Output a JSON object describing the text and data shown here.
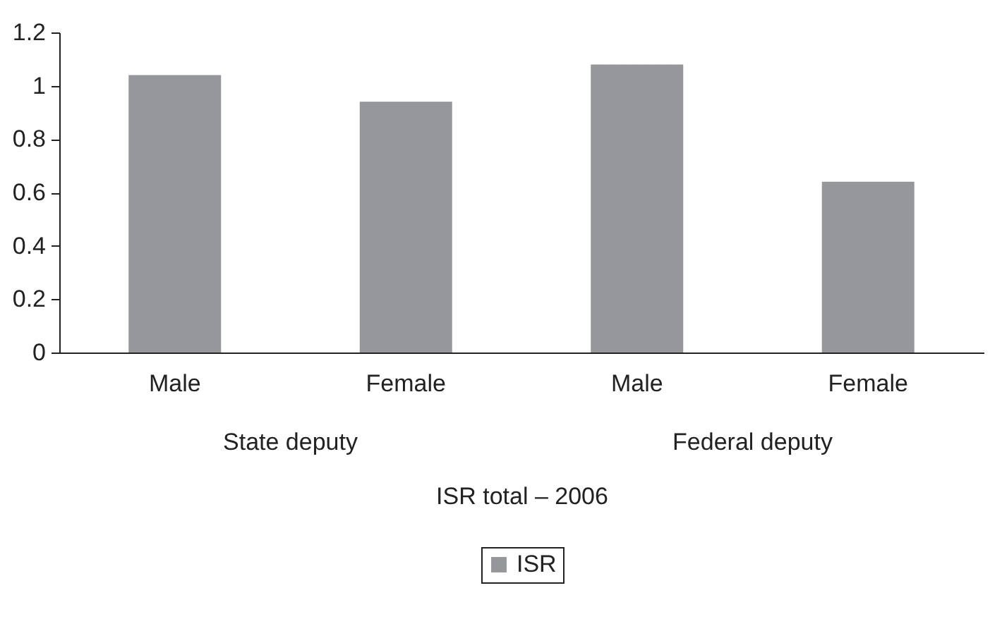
{
  "chart_data": {
    "type": "bar",
    "xlabel": "ISR total – 2006",
    "categories": [
      "Male",
      "Female",
      "Male",
      "Female"
    ],
    "series": [
      {
        "name": "ISR",
        "color": "#96979b",
        "values": [
          1.04,
          0.94,
          1.08,
          0.64
        ]
      }
    ],
    "annotations": [
      "State deputy",
      "Federal deputy"
    ],
    "ylim": [
      0,
      1.2
    ],
    "yticks": [
      0,
      0.2,
      0.4,
      0.6,
      0.8,
      1,
      1.2
    ],
    "grid": false,
    "legend": "bottom"
  }
}
